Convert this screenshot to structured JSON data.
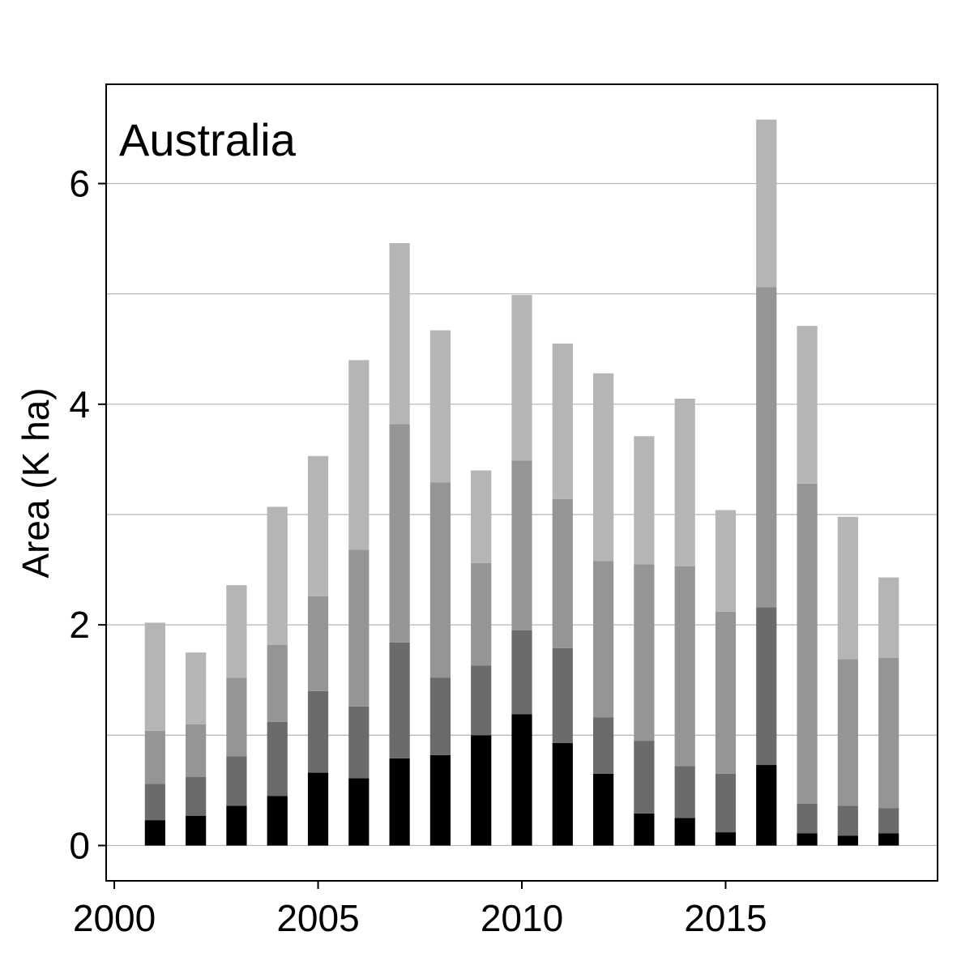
{
  "chart_data": {
    "type": "bar",
    "stacked": true,
    "title": "Australia",
    "xlabel": "",
    "ylabel": "Area (K ha)",
    "xlim": [
      1999.8,
      2020.2
    ],
    "ylim": [
      -0.32,
      6.9
    ],
    "xticks": [
      2000,
      2005,
      2010,
      2015
    ],
    "yticks": [
      0,
      2,
      4,
      6
    ],
    "grid": true,
    "legend": "none",
    "x": [
      2001,
      2002,
      2003,
      2004,
      2005,
      2006,
      2007,
      2008,
      2009,
      2010,
      2011,
      2012,
      2013,
      2014,
      2015,
      2016,
      2017,
      2018,
      2019
    ],
    "series": [
      {
        "color": "#000000",
        "values": [
          0.23,
          0.27,
          0.36,
          0.45,
          0.66,
          0.61,
          0.79,
          0.82,
          1.0,
          1.19,
          0.93,
          0.65,
          0.29,
          0.25,
          0.12,
          0.73,
          0.11,
          0.09,
          0.11
        ]
      },
      {
        "color": "#6b6b6b",
        "values": [
          0.33,
          0.35,
          0.45,
          0.67,
          0.74,
          0.65,
          1.05,
          0.7,
          0.63,
          0.76,
          0.86,
          0.51,
          0.66,
          0.47,
          0.53,
          1.43,
          0.27,
          0.27,
          0.23
        ]
      },
      {
        "color": "#959595",
        "values": [
          0.48,
          0.48,
          0.71,
          0.7,
          0.86,
          1.42,
          1.98,
          1.77,
          0.93,
          1.54,
          1.35,
          1.42,
          1.6,
          1.81,
          1.47,
          2.9,
          2.9,
          1.33,
          1.36
        ]
      },
      {
        "color": "#b5b5b5",
        "values": [
          0.98,
          0.65,
          0.84,
          1.25,
          1.27,
          1.72,
          1.64,
          1.38,
          0.84,
          1.5,
          1.41,
          1.7,
          1.16,
          1.52,
          0.92,
          1.52,
          1.43,
          1.29,
          0.73
        ]
      }
    ]
  }
}
